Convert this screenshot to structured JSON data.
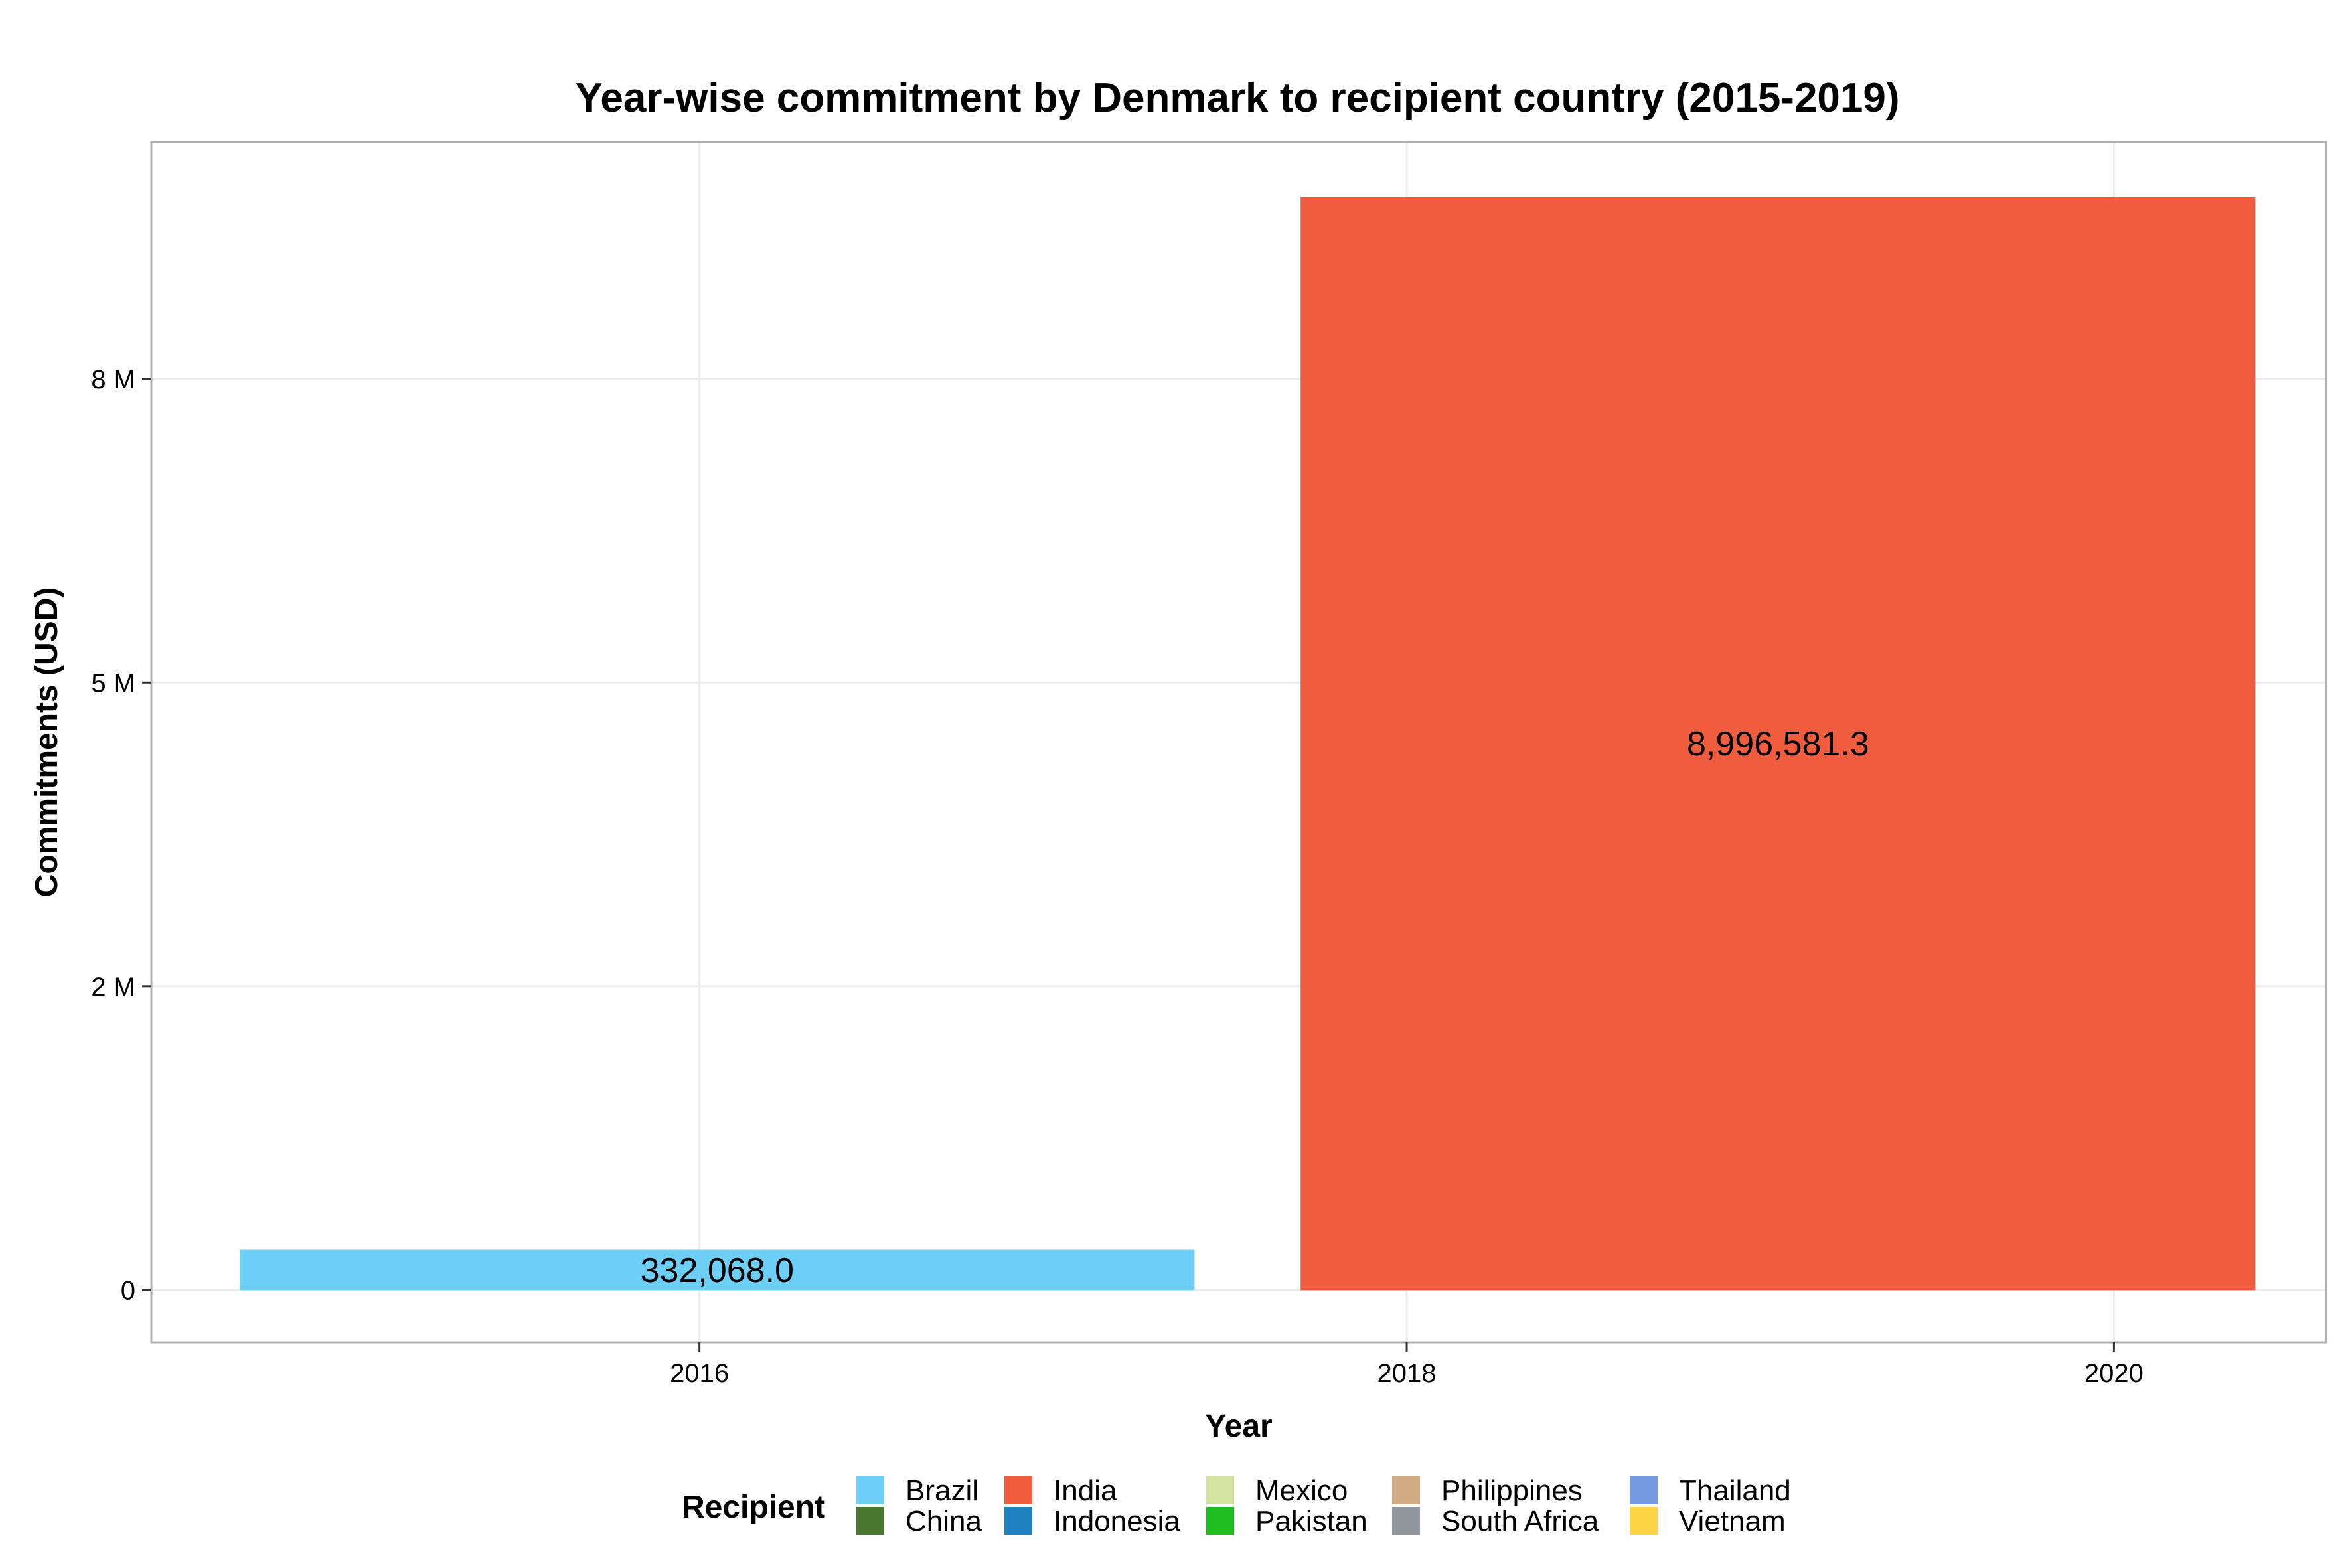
{
  "chart_data": {
    "type": "bar",
    "title": "Year-wise commitment by Denmark to recipient country (2015-2019)",
    "xlabel": "Year",
    "ylabel": "Commitments (USD)",
    "x_ticks": [
      2016,
      2018,
      2020
    ],
    "y_ticks": [
      {
        "value": 0,
        "label": "0"
      },
      {
        "value": 2500000,
        "label": "2 M"
      },
      {
        "value": 5000000,
        "label": "5 M"
      },
      {
        "value": 7500000,
        "label": "8 M"
      }
    ],
    "xlim": [
      2014.45,
      2020.6
    ],
    "ylim": [
      -430000,
      9450000
    ],
    "grid": true,
    "legend_position": "bottom",
    "legend_title": "Recipient",
    "bars": [
      {
        "recipient": "Brazil",
        "x_start": 2014.7,
        "x_end": 2017.4,
        "value": 332068.0,
        "label": "332,068.0"
      },
      {
        "recipient": "India",
        "x_start": 2017.7,
        "x_end": 2020.4,
        "value": 8996581.3,
        "label": "8,996,581.3"
      }
    ],
    "legend": [
      {
        "name": "Brazil",
        "color": "#6DCFF6"
      },
      {
        "name": "China",
        "color": "#4A7730"
      },
      {
        "name": "India",
        "color": "#F05D3E"
      },
      {
        "name": "Indonesia",
        "color": "#1F82C0"
      },
      {
        "name": "Mexico",
        "color": "#D5E3A2"
      },
      {
        "name": "Pakistan",
        "color": "#1CBE20"
      },
      {
        "name": "Philippines",
        "color": "#D1AB83"
      },
      {
        "name": "South Africa",
        "color": "#8F969C"
      },
      {
        "name": "Thailand",
        "color": "#7399E0"
      },
      {
        "name": "Vietnam",
        "color": "#FCD544"
      }
    ]
  }
}
